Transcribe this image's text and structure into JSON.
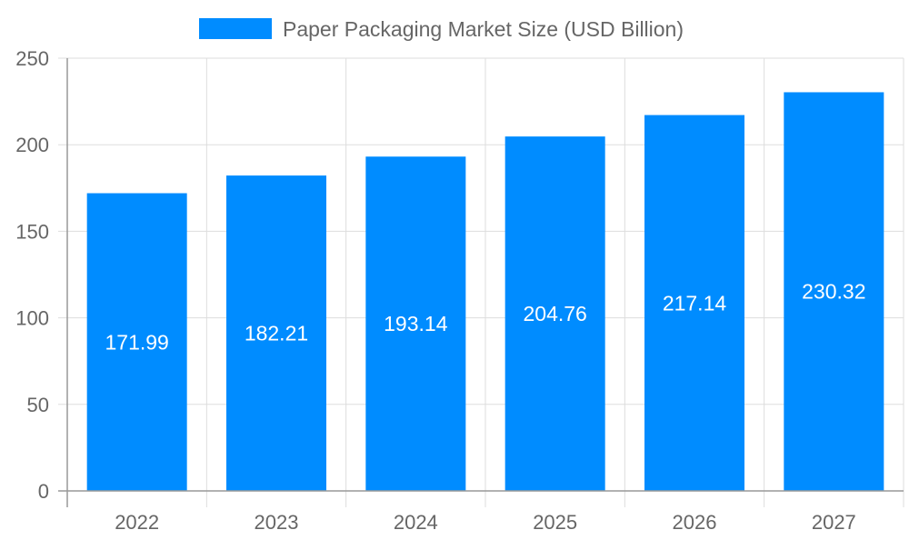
{
  "chart_data": {
    "type": "bar",
    "title": "",
    "xlabel": "",
    "ylabel": "",
    "categories": [
      "2022",
      "2023",
      "2024",
      "2025",
      "2026",
      "2027"
    ],
    "series": [
      {
        "name": "Paper Packaging Market Size (USD Billion)",
        "values": [
          171.99,
          182.21,
          193.14,
          204.76,
          217.14,
          230.32
        ],
        "data_labels": [
          "171.99",
          "182.21",
          "193.14",
          "204.76",
          "217.14",
          "230.32"
        ],
        "color": "#008cff"
      }
    ],
    "ylim": [
      0,
      250
    ],
    "yticks": [
      "0",
      "50",
      "100",
      "150",
      "200",
      "250"
    ],
    "grid": true,
    "legend": "top-center"
  }
}
